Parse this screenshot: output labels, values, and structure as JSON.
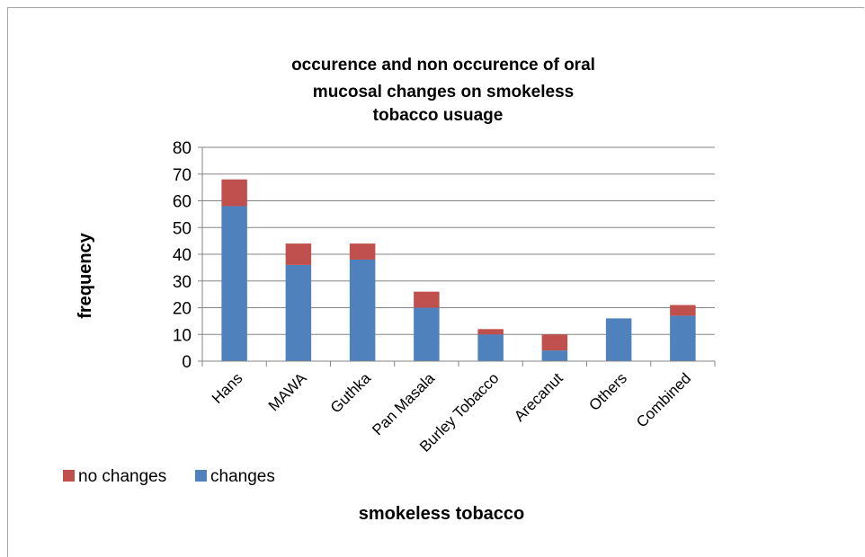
{
  "chart_data": {
    "type": "bar",
    "stacked": true,
    "title_lines": [
      "occurence and non occurence of oral",
      "mucosal changes on smokeless",
      "tobacco usuage"
    ],
    "xlabel": "smokeless tobacco",
    "ylabel": "frequency",
    "ylim": [
      0,
      80
    ],
    "yticks": [
      0,
      10,
      20,
      30,
      40,
      50,
      60,
      70,
      80
    ],
    "grid": true,
    "legend_position": "bottom-left",
    "categories": [
      "Hans",
      "MAWA",
      "Guthka",
      "Pan Masala",
      "Burley Tobacco",
      "Arecanut",
      "Others",
      "Combined"
    ],
    "series": [
      {
        "name": "changes",
        "color": "#4f81bd",
        "values": [
          58,
          36,
          38,
          20,
          10,
          4,
          16,
          17
        ]
      },
      {
        "name": "no changes",
        "color": "#c0504d",
        "values": [
          10,
          8,
          6,
          6,
          2,
          6,
          0,
          4
        ]
      }
    ],
    "legend": [
      "no changes",
      "changes"
    ]
  }
}
